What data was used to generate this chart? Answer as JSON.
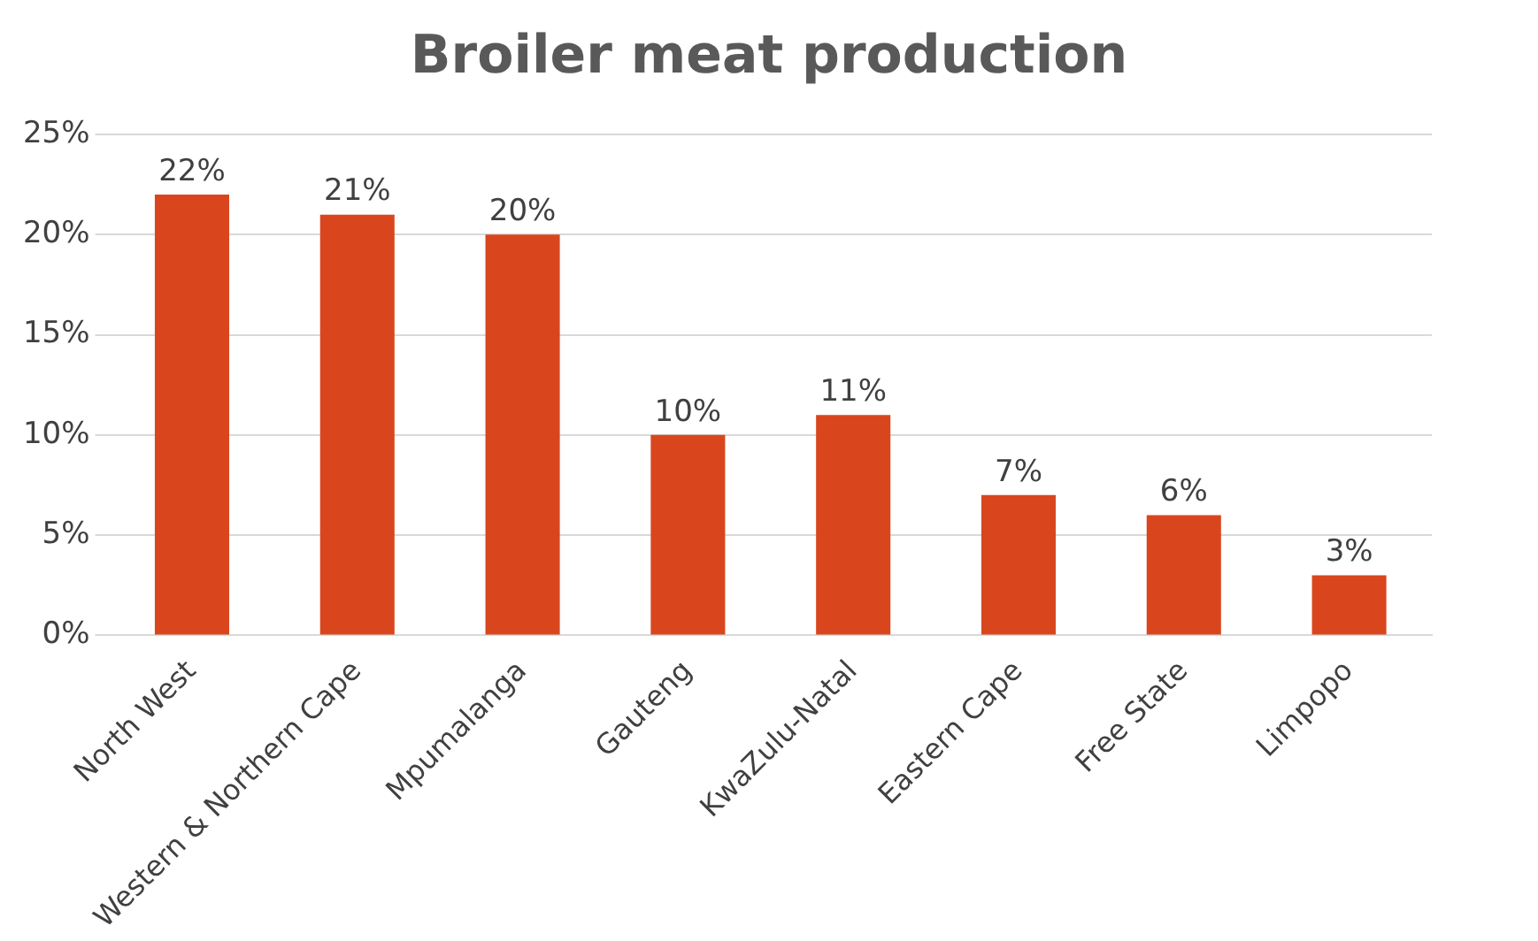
{
  "chart_data": {
    "type": "bar",
    "title": "Broiler meat production",
    "categories": [
      "North West",
      "Western & Northern Cape",
      "Mpumalanga",
      "Gauteng",
      "KwaZulu-Natal",
      "Eastern Cape",
      "Free State",
      "Limpopo"
    ],
    "values": [
      22,
      21,
      20,
      10,
      11,
      7,
      6,
      3
    ],
    "value_labels": [
      "22%",
      "21%",
      "20%",
      "10%",
      "11%",
      "7%",
      "6%",
      "3%"
    ],
    "color": "#d9461e",
    "ylim": [
      0,
      25
    ],
    "yticks": [
      {
        "value": 0,
        "label": "0%"
      },
      {
        "value": 5,
        "label": "5%"
      },
      {
        "value": 10,
        "label": "10%"
      },
      {
        "value": 15,
        "label": "15%"
      },
      {
        "value": 20,
        "label": "20%"
      },
      {
        "value": 25,
        "label": "25%"
      }
    ],
    "grid": "y",
    "legend": false
  }
}
